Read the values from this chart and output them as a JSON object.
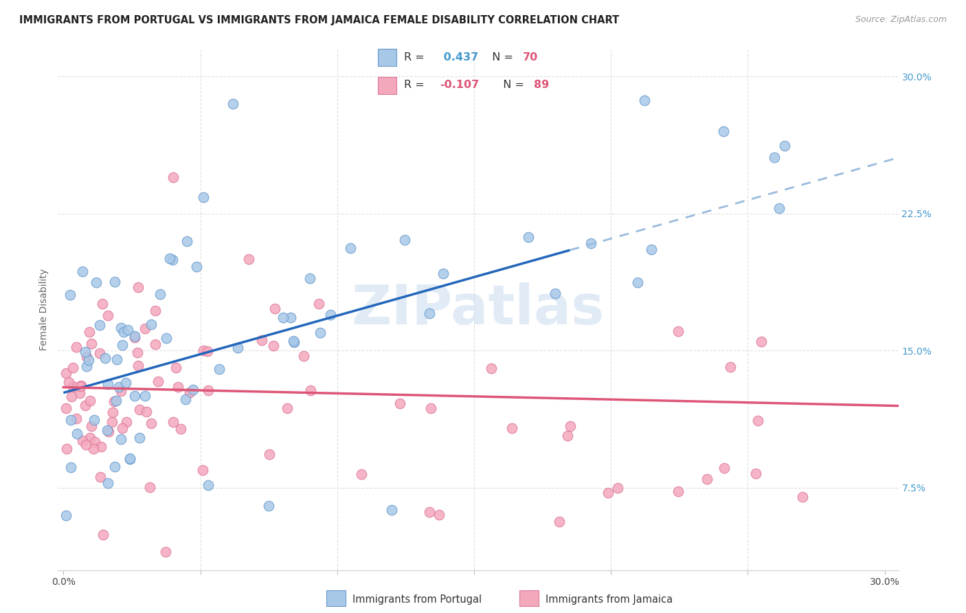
{
  "title": "IMMIGRANTS FROM PORTUGAL VS IMMIGRANTS FROM JAMAICA FEMALE DISABILITY CORRELATION CHART",
  "source": "Source: ZipAtlas.com",
  "ylabel": "Female Disability",
  "xlim": [
    -0.002,
    0.305
  ],
  "ylim": [
    0.03,
    0.315
  ],
  "xtick_positions": [
    0.0,
    0.05,
    0.1,
    0.15,
    0.2,
    0.25,
    0.3
  ],
  "xticklabels": [
    "0.0%",
    "",
    "",
    "",
    "",
    "",
    "30.0%"
  ],
  "ytick_positions": [
    0.075,
    0.15,
    0.225,
    0.3
  ],
  "ytick_labels": [
    "7.5%",
    "15.0%",
    "22.5%",
    "30.0%"
  ],
  "portugal_color": "#a8c8e8",
  "jamaica_color": "#f4a8bc",
  "portugal_edge": "#6699cc",
  "jamaica_edge": "#dd7799",
  "trendline_portugal_solid_color": "#2266bb",
  "trendline_portugal_dash_color": "#99bbdd",
  "trendline_jamaica_color": "#dd5577",
  "R_portugal": 0.437,
  "N_portugal": 70,
  "R_jamaica": -0.107,
  "N_jamaica": 89,
  "watermark_color": "#c5d8ee",
  "watermark_alpha": 0.5,
  "grid_color": "#dddddd",
  "background_color": "#ffffff",
  "title_fontsize": 10.5,
  "ylabel_fontsize": 10,
  "tick_fontsize": 10,
  "right_tick_color": "#4499cc",
  "legend_R_color": "#4499cc",
  "legend_N_color": "#dd5577",
  "legend_text_color": "#333333",
  "source_color": "#999999",
  "bottom_label_color": "#333333"
}
